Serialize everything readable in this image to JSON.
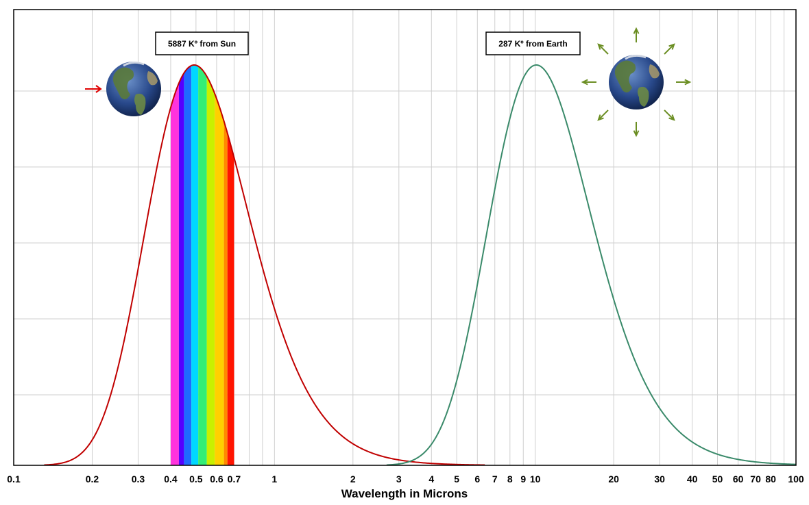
{
  "chart_data": {
    "type": "line",
    "title": "",
    "xlabel": "Wavelength in Microns",
    "ylabel": "",
    "x_scale": "log",
    "xlim": [
      0.1,
      100
    ],
    "x_ticks": [
      {
        "value": 0.1,
        "label": "0.1"
      },
      {
        "value": 0.2,
        "label": "0.2"
      },
      {
        "value": 0.3,
        "label": "0.3"
      },
      {
        "value": 0.4,
        "label": "0.4"
      },
      {
        "value": 0.5,
        "label": "0.5"
      },
      {
        "value": 0.6,
        "label": "0.6"
      },
      {
        "value": 0.7,
        "label": "0.7"
      },
      {
        "value": 1,
        "label": "1"
      },
      {
        "value": 2,
        "label": "2"
      },
      {
        "value": 3,
        "label": "3"
      },
      {
        "value": 4,
        "label": "4"
      },
      {
        "value": 5,
        "label": "5"
      },
      {
        "value": 6,
        "label": "6"
      },
      {
        "value": 7,
        "label": "7"
      },
      {
        "value": 8,
        "label": "8"
      },
      {
        "value": 9,
        "label": "9"
      },
      {
        "value": 10,
        "label": "10"
      },
      {
        "value": 20,
        "label": "20"
      },
      {
        "value": 30,
        "label": "30"
      },
      {
        "value": 40,
        "label": "40"
      },
      {
        "value": 50,
        "label": "50"
      },
      {
        "value": 60,
        "label": "60"
      },
      {
        "value": 70,
        "label": "70"
      },
      {
        "value": 80,
        "label": "80"
      },
      {
        "value": 100,
        "label": "100"
      }
    ],
    "grid": true,
    "y_gridlines": 6,
    "series": [
      {
        "label": "5887 Kº from Sun",
        "color": "#c00000",
        "temperature_k": 5887,
        "normalized": true
      },
      {
        "label": "287 Kº from Earth",
        "color": "#3a8a6a",
        "temperature_k": 287,
        "normalized": true
      }
    ],
    "visible_spectrum_bands": [
      {
        "from": 0.4,
        "to": 0.43,
        "color": "#ff33dd"
      },
      {
        "from": 0.43,
        "to": 0.45,
        "color": "#5500ff"
      },
      {
        "from": 0.45,
        "to": 0.48,
        "color": "#1e6bff"
      },
      {
        "from": 0.48,
        "to": 0.51,
        "color": "#00d8ff"
      },
      {
        "from": 0.51,
        "to": 0.55,
        "color": "#33ee77"
      },
      {
        "from": 0.55,
        "to": 0.59,
        "color": "#c8f000"
      },
      {
        "from": 0.59,
        "to": 0.64,
        "color": "#ffd000"
      },
      {
        "from": 0.64,
        "to": 0.66,
        "color": "#ff8a00"
      },
      {
        "from": 0.66,
        "to": 0.7,
        "color": "#ff1400"
      }
    ],
    "annotations": [
      {
        "icon": "earth-incoming-icon",
        "arrow_color": "#e00000"
      },
      {
        "icon": "earth-emitting-icon",
        "arrow_color": "#6b8e23"
      }
    ]
  }
}
